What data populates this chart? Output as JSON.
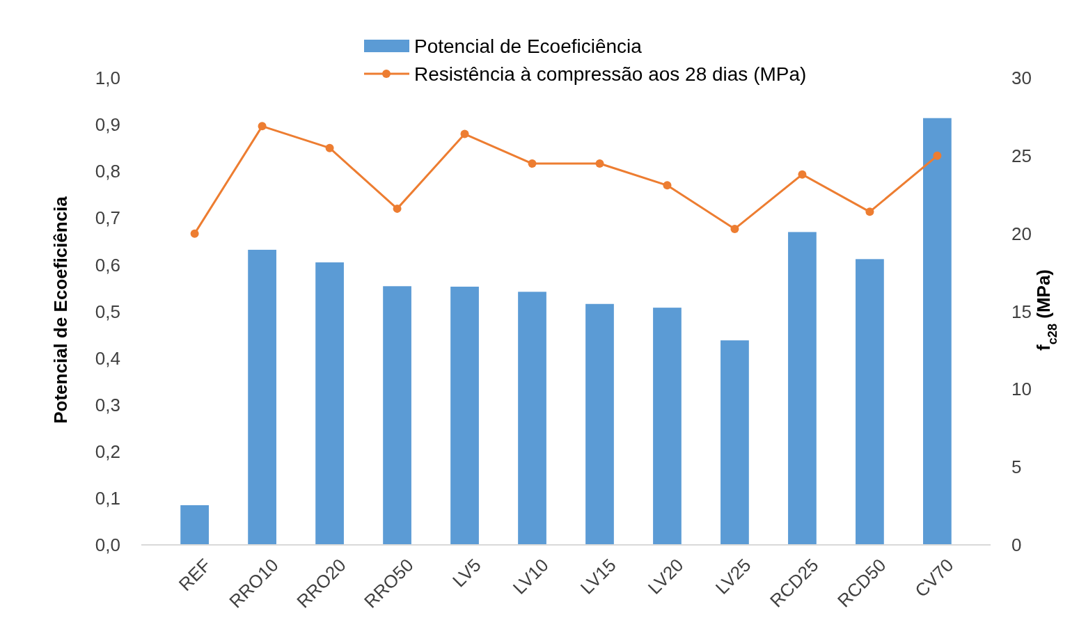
{
  "chart_data": {
    "type": "bar",
    "categories": [
      "REF",
      "RRO10",
      "RRO20",
      "RRO50",
      "LV5",
      "LV10",
      "LV15",
      "LV20",
      "LV25",
      "RCD25",
      "RCD50",
      "CV70"
    ],
    "ylabel": "Potencial de Ecoeficiência",
    "y2label": "f$_{c28}$ (MPa)",
    "series": [
      {
        "name": "Potencial de Ecoeficiência",
        "color": "#5b9bd5",
        "values": [
          0.085,
          0.632,
          0.605,
          0.554,
          0.553,
          0.542,
          0.516,
          0.508,
          0.438,
          0.67,
          0.612,
          0.914
        ]
      },
      {
        "name": "Resistência à compressão aos 28 dias (MPa)",
        "type": "line",
        "axis": "y2",
        "color": "#ed7d31",
        "marker": "circle",
        "values": [
          20.0,
          26.9,
          25.5,
          21.6,
          26.4,
          24.5,
          24.5,
          23.1,
          20.3,
          23.8,
          21.4,
          25.0
        ]
      }
    ],
    "ylim": [
      0,
      1
    ],
    "yticks": [
      {
        "value": 0,
        "label": "0,0"
      },
      {
        "value": 0.1,
        "label": "0,1"
      },
      {
        "value": 0.2,
        "label": "0,2"
      },
      {
        "value": 0.3,
        "label": "0,3"
      },
      {
        "value": 0.4,
        "label": "0,4"
      },
      {
        "value": 0.5,
        "label": "0,5"
      },
      {
        "value": 0.6,
        "label": "0,6"
      },
      {
        "value": 0.7,
        "label": "0,7"
      },
      {
        "value": 0.8,
        "label": "0,8"
      },
      {
        "value": 0.9,
        "label": "0,9"
      },
      {
        "value": 1,
        "label": "1,0"
      }
    ],
    "y2lim": [
      0,
      30
    ],
    "y2ticks": [
      0,
      5,
      10,
      15,
      20,
      25,
      30
    ],
    "legend": "top",
    "grid": false
  }
}
